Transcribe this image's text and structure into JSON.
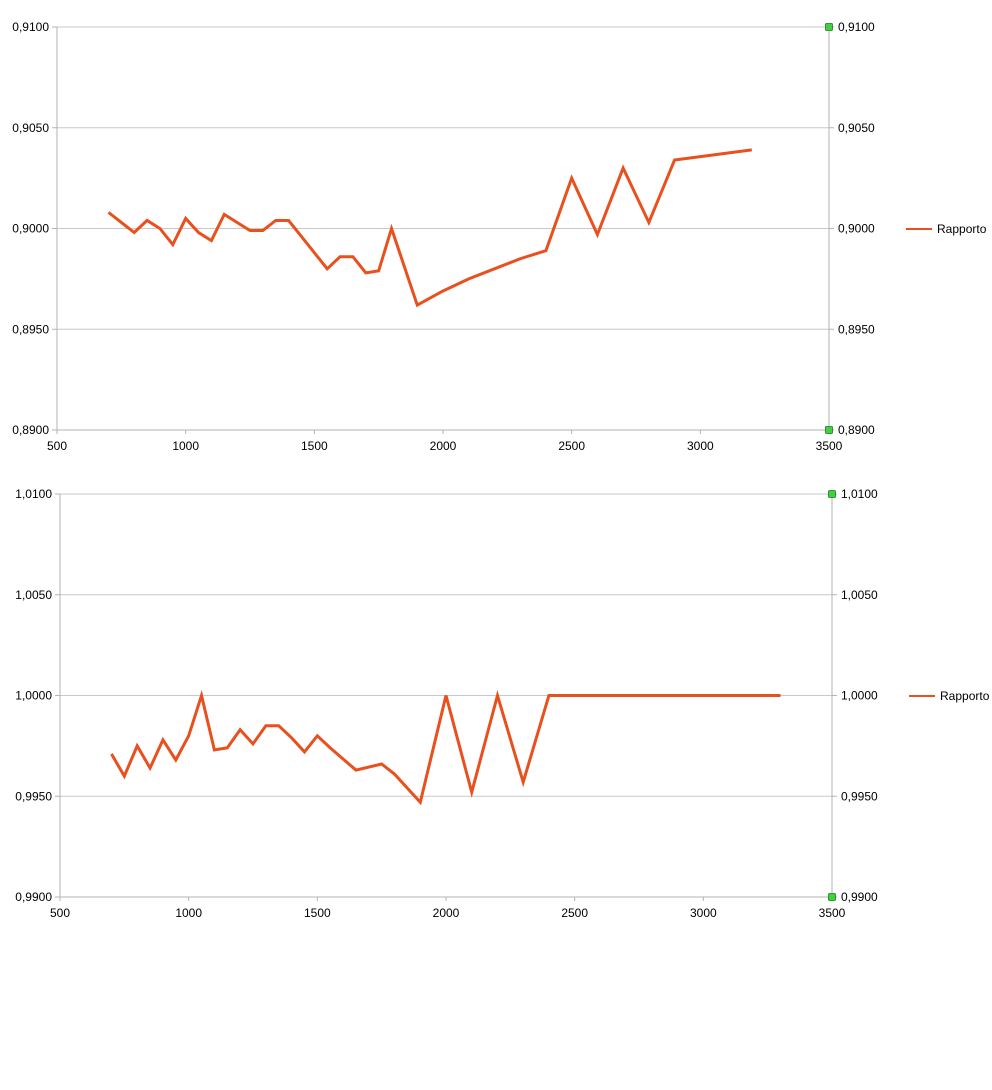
{
  "chart_data": [
    {
      "type": "line",
      "title": "",
      "xlabel": "",
      "ylabel": "",
      "xlim": [
        500,
        3500
      ],
      "ylim": [
        0.89,
        0.91
      ],
      "x_ticks": [
        "500",
        "1000",
        "1500",
        "2000",
        "2500",
        "3000",
        "3500"
      ],
      "y_ticks": [
        "0,8900",
        "0,8950",
        "0,9000",
        "0,9050",
        "0,9100"
      ],
      "y2_ticks": [
        "0,8900",
        "0,8950",
        "0,9000",
        "0,9050",
        "0,9100"
      ],
      "grid": true,
      "legend_position": "right",
      "series": [
        {
          "name": "Rapporto",
          "color": "#e8501e",
          "x": [
            700,
            750,
            800,
            850,
            900,
            950,
            1000,
            1050,
            1100,
            1150,
            1200,
            1250,
            1300,
            1350,
            1400,
            1450,
            1550,
            1600,
            1650,
            1700,
            1750,
            1800,
            1900,
            2000,
            2100,
            2200,
            2300,
            2400,
            2500,
            2600,
            2700,
            2800,
            2900,
            3200
          ],
          "y": [
            0.9008,
            0.9003,
            0.8998,
            0.9004,
            0.9,
            0.8992,
            0.9005,
            0.8998,
            0.8994,
            0.9007,
            0.9003,
            0.8999,
            0.8999,
            0.9004,
            0.9004,
            0.8996,
            0.898,
            0.8986,
            0.8986,
            0.8978,
            0.8979,
            0.9,
            0.8962,
            0.8969,
            0.8975,
            0.898,
            0.8985,
            0.8989,
            0.9025,
            0.8997,
            0.903,
            0.9003,
            0.9034,
            0.9039
          ]
        }
      ]
    },
    {
      "type": "line",
      "title": "",
      "xlabel": "",
      "ylabel": "",
      "xlim": [
        500,
        3500
      ],
      "ylim": [
        0.99,
        1.01
      ],
      "x_ticks": [
        "500",
        "1000",
        "1500",
        "2000",
        "2500",
        "3000",
        "3500"
      ],
      "y_ticks": [
        "0,9900",
        "0,9950",
        "1,0000",
        "1,0050",
        "1,0100"
      ],
      "y2_ticks": [
        "0,9900",
        "0,9950",
        "1,0000",
        "1,0050",
        "1,0100"
      ],
      "grid": true,
      "legend_position": "right",
      "series": [
        {
          "name": "Rapporto",
          "color": "#e8501e",
          "x": [
            700,
            750,
            800,
            850,
            900,
            950,
            1000,
            1050,
            1100,
            1150,
            1200,
            1250,
            1300,
            1350,
            1400,
            1450,
            1500,
            1550,
            1650,
            1750,
            1800,
            1900,
            2000,
            2100,
            2200,
            2300,
            2400,
            3300
          ],
          "y": [
            0.9971,
            0.996,
            0.9975,
            0.9964,
            0.9978,
            0.9968,
            0.998,
            1.0,
            0.9973,
            0.9974,
            0.9983,
            0.9976,
            0.9985,
            0.9985,
            0.9979,
            0.9972,
            0.998,
            0.9974,
            0.9963,
            0.9966,
            0.9961,
            0.9947,
            1.0,
            0.9952,
            1.0,
            0.9957,
            1.0,
            1.0
          ]
        }
      ]
    }
  ]
}
